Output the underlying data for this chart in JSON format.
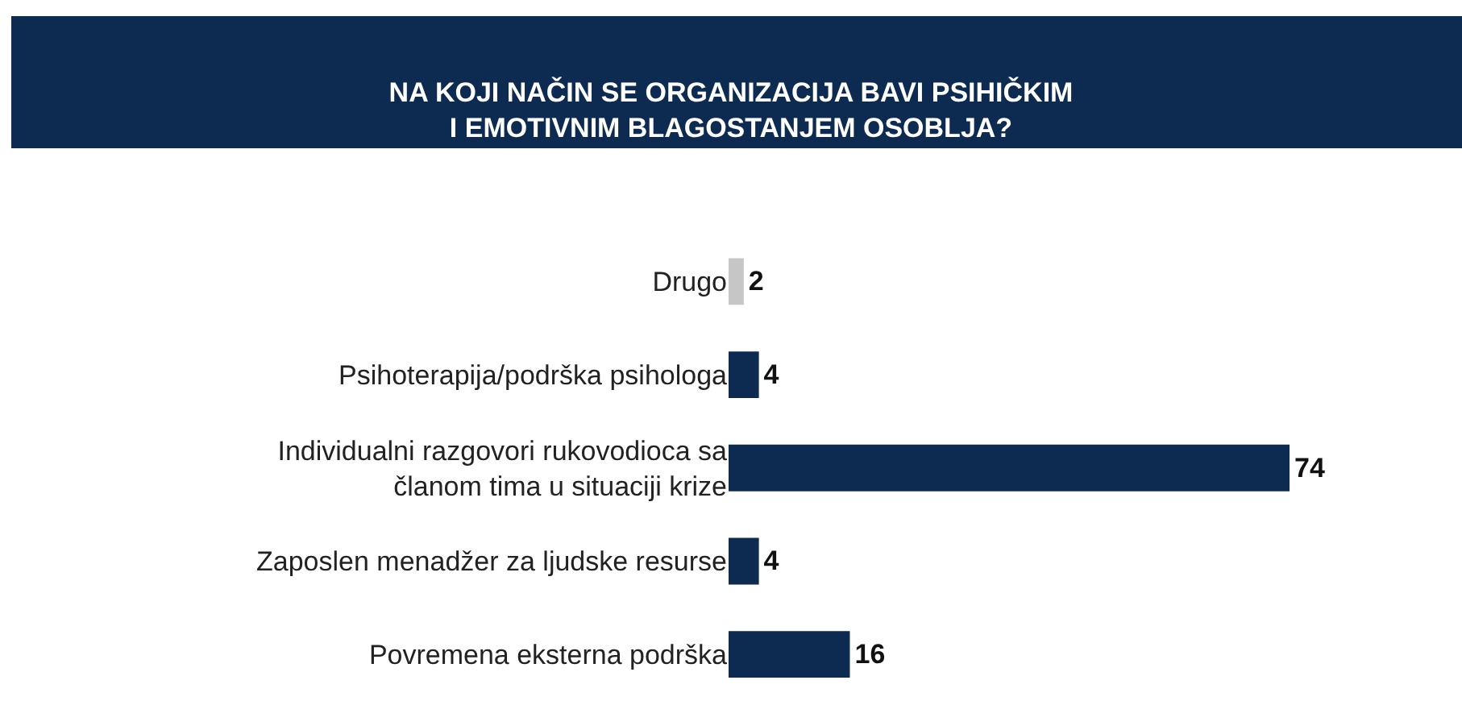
{
  "chart_data": {
    "type": "bar",
    "orientation": "horizontal",
    "title": "NA KOJI NAČIN SE ORGANIZACIJA BAVI PSIHIČKIM\nI EMOTIVNIM BLAGOSTANJEM OSOBLJA?",
    "categories": [
      "Drugo",
      "Psihoterapija/podrška psihologa",
      "Individualni razgovori rukovodioca sa\nčlanom tima u situaciji krize",
      "Zaposlen menadžer za ljudske resurse",
      "Povremena eksterna podrška"
    ],
    "values": [
      2,
      4,
      74,
      4,
      16
    ],
    "colors": [
      "#c6c6c6",
      "#0d2b50",
      "#0d2b50",
      "#0d2b50",
      "#0d2b50"
    ],
    "data_labels": true
  }
}
